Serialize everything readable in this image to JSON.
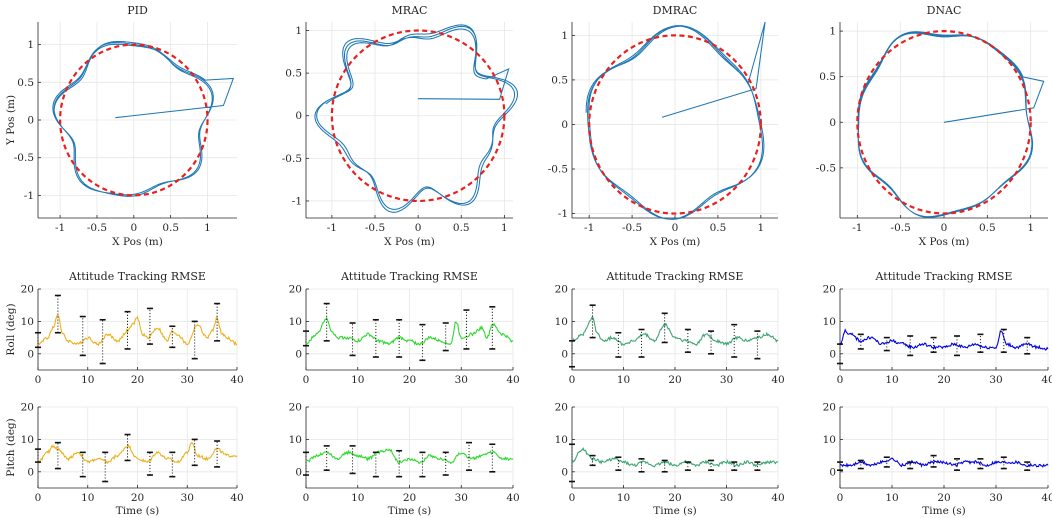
{
  "figure": {
    "trajectory_xlabel": "X Pos (m)",
    "trajectory_ylabel": "Y Pos (m)",
    "rmse_title": "Attitude Tracking RMSE",
    "roll_ylabel": "Roll (deg)",
    "pitch_ylabel": "Pitch (deg)",
    "time_xlabel": "Time (s)"
  },
  "chart_data": [
    {
      "type": "line",
      "controller": "PID",
      "title": "PID",
      "xlabel": "X Pos (m)",
      "ylabel": "Y Pos (m)",
      "xlim": [
        -1.3,
        1.4
      ],
      "ylim": [
        -1.3,
        1.3
      ],
      "xticks": [
        -1,
        -0.5,
        0,
        0.5,
        1
      ],
      "yticks": [
        -1,
        -0.5,
        0,
        0.5,
        1
      ],
      "reference": {
        "shape": "circle",
        "radius": 1,
        "style": "dashed",
        "color": "#e8201e"
      },
      "actual": {
        "color": "#1f77b4",
        "noise": 0.1,
        "harmonics": [
          5,
          7
        ],
        "start": [
          -0.25,
          0.03
        ],
        "spike": [
          1.35,
          0.55
        ]
      },
      "grid": true
    },
    {
      "type": "line",
      "controller": "MRAC",
      "title": "MRAC",
      "xlabel": "X Pos (m)",
      "ylabel": "",
      "xlim": [
        -1.3,
        1.1
      ],
      "ylim": [
        -1.2,
        1.1
      ],
      "xticks": [
        -1,
        -0.5,
        0,
        0.5,
        1
      ],
      "yticks": [
        -1,
        -0.5,
        0,
        0.5,
        1
      ],
      "reference": {
        "shape": "circle",
        "radius": 1,
        "style": "dashed",
        "color": "#e8201e"
      },
      "actual": {
        "color": "#1f77b4",
        "noise": 0.16,
        "harmonics": [
          6,
          9
        ],
        "start": [
          0.0,
          0.2
        ],
        "spike": [
          1.05,
          0.55
        ]
      },
      "grid": true
    },
    {
      "type": "line",
      "controller": "DMRAC",
      "title": "DMRAC",
      "xlabel": "X Pos (m)",
      "ylabel": "",
      "xlim": [
        -1.2,
        1.2
      ],
      "ylim": [
        -1.05,
        1.15
      ],
      "xticks": [
        -1,
        -0.5,
        0,
        0.5,
        1
      ],
      "yticks": [
        -1,
        -0.5,
        0,
        0.5,
        1
      ],
      "reference": {
        "shape": "circle",
        "radius": 1,
        "style": "dashed",
        "color": "#e8201e"
      },
      "actual": {
        "color": "#1f77b4",
        "noise": 0.08,
        "harmonics": [
          4,
          6
        ],
        "start": [
          -0.15,
          0.08
        ],
        "spike": [
          1.05,
          1.15
        ]
      },
      "grid": true
    },
    {
      "type": "line",
      "controller": "DNAC",
      "title": "DNAC",
      "xlabel": "X Pos (m)",
      "ylabel": "",
      "xlim": [
        -1.2,
        1.2
      ],
      "ylim": [
        -1.05,
        1.1
      ],
      "xticks": [
        -1,
        -0.5,
        0,
        0.5,
        1
      ],
      "yticks": [
        -0.5,
        0,
        0.5,
        1
      ],
      "reference": {
        "shape": "circle",
        "radius": 1,
        "style": "dashed",
        "color": "#e8201e"
      },
      "actual": {
        "color": "#1f77b4",
        "noise": 0.05,
        "harmonics": [
          5,
          8
        ],
        "start": [
          0.0,
          0.0
        ],
        "spike": [
          1.15,
          0.45
        ]
      },
      "grid": true
    },
    {
      "type": "line",
      "controller": "PID",
      "axis": "roll",
      "title": "Attitude Tracking RMSE",
      "xlabel": "",
      "ylabel": "Roll (deg)",
      "xlim": [
        0,
        40
      ],
      "ylim": [
        -5,
        20
      ],
      "xticks": [
        0,
        10,
        20,
        30,
        40
      ],
      "yticks": [
        0,
        10,
        20
      ],
      "line_color": "#edb120",
      "x": [
        0,
        2,
        3,
        4,
        5,
        6,
        8,
        10,
        12,
        14,
        16,
        18,
        19,
        20,
        21,
        22,
        24,
        26,
        27,
        28,
        30,
        32,
        34,
        35,
        36,
        37,
        38,
        40
      ],
      "y": [
        3,
        5,
        8,
        12,
        6,
        4,
        3,
        5,
        3,
        6,
        4,
        7,
        9,
        11,
        6,
        5,
        8,
        4,
        7,
        6,
        3,
        9,
        5,
        7,
        11,
        6,
        5,
        3
      ],
      "errorbars": [
        {
          "t": 0,
          "low": 2,
          "high": 6.5
        },
        {
          "t": 4,
          "low": 6.5,
          "high": 18
        },
        {
          "t": 9,
          "low": -0.5,
          "high": 11.5
        },
        {
          "t": 13,
          "low": -3,
          "high": 10.5
        },
        {
          "t": 18,
          "low": 1.5,
          "high": 13
        },
        {
          "t": 22.5,
          "low": 3,
          "high": 14
        },
        {
          "t": 27,
          "low": 2,
          "high": 8.5
        },
        {
          "t": 31.5,
          "low": -1.5,
          "high": 10
        },
        {
          "t": 36,
          "low": 4,
          "high": 15.5
        }
      ]
    },
    {
      "type": "line",
      "controller": "MRAC",
      "axis": "roll",
      "title": "Attitude Tracking RMSE",
      "xlabel": "",
      "ylabel": "",
      "xlim": [
        0,
        40
      ],
      "ylim": [
        -5,
        20
      ],
      "xticks": [
        0,
        10,
        20,
        30,
        40
      ],
      "yticks": [
        0,
        10,
        20
      ],
      "line_color": "#2fd82f",
      "x": [
        0,
        2,
        4,
        5,
        6,
        8,
        10,
        12,
        14,
        16,
        18,
        20,
        22,
        24,
        26,
        28,
        29,
        30,
        32,
        34,
        35,
        36,
        38,
        40
      ],
      "y": [
        3,
        6,
        11,
        7,
        5,
        5,
        4,
        6,
        4,
        3,
        5,
        4,
        3,
        5,
        4,
        3,
        10,
        5,
        6,
        8,
        5,
        9,
        6,
        4
      ],
      "errorbars": [
        {
          "t": 0,
          "low": 2.5,
          "high": 7
        },
        {
          "t": 4,
          "low": 4,
          "high": 15.5
        },
        {
          "t": 9,
          "low": -0.5,
          "high": 9.5
        },
        {
          "t": 13.5,
          "low": -1,
          "high": 10.5
        },
        {
          "t": 18,
          "low": -1,
          "high": 10.5
        },
        {
          "t": 22.5,
          "low": -2,
          "high": 9
        },
        {
          "t": 27,
          "low": 1,
          "high": 9.5
        },
        {
          "t": 31,
          "low": 1.5,
          "high": 13.5
        },
        {
          "t": 36,
          "low": 1.5,
          "high": 14.5
        }
      ]
    },
    {
      "type": "line",
      "controller": "DMRAC",
      "axis": "roll",
      "title": "Attitude Tracking RMSE",
      "xlabel": "",
      "ylabel": "",
      "xlim": [
        0,
        40
      ],
      "ylim": [
        -5,
        20
      ],
      "xticks": [
        0,
        10,
        20,
        30,
        40
      ],
      "yticks": [
        0,
        10,
        20
      ],
      "line_color": "#3ea572",
      "x": [
        0,
        2,
        4,
        5,
        6,
        8,
        10,
        12,
        14,
        16,
        18,
        20,
        22,
        24,
        26,
        28,
        30,
        32,
        34,
        36,
        38,
        40
      ],
      "y": [
        4,
        6,
        11,
        6,
        4,
        5,
        3,
        4,
        6,
        4,
        9,
        5,
        4,
        3,
        6,
        4,
        3,
        5,
        4,
        5,
        6,
        4
      ],
      "errorbars": [
        {
          "t": 0,
          "low": -4,
          "high": 4
        },
        {
          "t": 4,
          "low": 5,
          "high": 15
        },
        {
          "t": 9,
          "low": -1,
          "high": 6.5
        },
        {
          "t": 13.5,
          "low": -1,
          "high": 7.5
        },
        {
          "t": 18,
          "low": 3.5,
          "high": 12.5
        },
        {
          "t": 22.5,
          "low": 0.5,
          "high": 7.5
        },
        {
          "t": 27,
          "low": 0,
          "high": 7
        },
        {
          "t": 31.5,
          "low": -1,
          "high": 9
        },
        {
          "t": 36,
          "low": -1.5,
          "high": 7
        }
      ]
    },
    {
      "type": "line",
      "controller": "DNAC",
      "axis": "roll",
      "title": "Attitude Tracking RMSE",
      "xlabel": "",
      "ylabel": "",
      "xlim": [
        0,
        40
      ],
      "ylim": [
        -5,
        20
      ],
      "xticks": [
        0,
        10,
        20,
        30,
        40
      ],
      "yticks": [
        0,
        10,
        20
      ],
      "line_color": "#0000e0",
      "x": [
        0,
        1,
        2,
        4,
        6,
        8,
        10,
        12,
        14,
        16,
        18,
        20,
        22,
        24,
        26,
        28,
        30,
        31,
        32,
        34,
        36,
        38,
        40
      ],
      "y": [
        3,
        7,
        6,
        4,
        5,
        3,
        4,
        3,
        2,
        3,
        2,
        2,
        3,
        2,
        3,
        2,
        2,
        7,
        3,
        2,
        3,
        2,
        1.5
      ],
      "errorbars": [
        {
          "t": 0,
          "low": -3,
          "high": 3
        },
        {
          "t": 4,
          "low": 1.5,
          "high": 6
        },
        {
          "t": 9,
          "low": 1,
          "high": 5
        },
        {
          "t": 13.5,
          "low": -0.5,
          "high": 5.5
        },
        {
          "t": 18,
          "low": 0.5,
          "high": 5
        },
        {
          "t": 22.5,
          "low": -0.5,
          "high": 5.5
        },
        {
          "t": 27,
          "low": 0.5,
          "high": 6
        },
        {
          "t": 31.5,
          "low": 0.5,
          "high": 7.5
        },
        {
          "t": 36,
          "low": 0,
          "high": 5
        }
      ]
    },
    {
      "type": "line",
      "controller": "PID",
      "axis": "pitch",
      "title": "",
      "xlabel": "Time (s)",
      "ylabel": "Pitch (deg)",
      "xlim": [
        0,
        40
      ],
      "ylim": [
        -5,
        20
      ],
      "xticks": [
        0,
        10,
        20,
        30,
        40
      ],
      "yticks": [
        0,
        10,
        20
      ],
      "line_color": "#edb120",
      "x": [
        0,
        2,
        3,
        4,
        6,
        8,
        10,
        12,
        14,
        16,
        18,
        20,
        22,
        24,
        26,
        28,
        30,
        31,
        32,
        34,
        36,
        38,
        40
      ],
      "y": [
        3,
        6,
        8,
        7,
        4,
        6,
        3,
        4,
        3,
        5,
        8,
        4,
        3,
        6,
        4,
        3,
        6,
        9,
        5,
        4,
        7,
        5,
        5
      ],
      "errorbars": [
        {
          "t": 0,
          "low": 3,
          "high": 7
        },
        {
          "t": 4,
          "low": 1,
          "high": 9
        },
        {
          "t": 9,
          "low": -1.5,
          "high": 6
        },
        {
          "t": 13.5,
          "low": -3,
          "high": 6
        },
        {
          "t": 18,
          "low": 3.5,
          "high": 11.5
        },
        {
          "t": 22.5,
          "low": -1,
          "high": 6
        },
        {
          "t": 27,
          "low": -1.5,
          "high": 6
        },
        {
          "t": 31.5,
          "low": 2,
          "high": 10
        },
        {
          "t": 36,
          "low": 1.5,
          "high": 9.5
        }
      ]
    },
    {
      "type": "line",
      "controller": "MRAC",
      "axis": "pitch",
      "title": "",
      "xlabel": "Time (s)",
      "ylabel": "",
      "xlim": [
        0,
        40
      ],
      "ylim": [
        -5,
        20
      ],
      "xticks": [
        0,
        10,
        20,
        30,
        40
      ],
      "yticks": [
        0,
        10,
        20
      ],
      "line_color": "#2fd82f",
      "x": [
        0,
        2,
        4,
        6,
        8,
        10,
        12,
        14,
        16,
        18,
        20,
        22,
        24,
        26,
        28,
        30,
        32,
        34,
        36,
        38,
        40
      ],
      "y": [
        3,
        5,
        6,
        4,
        6,
        5,
        4,
        6,
        7,
        3,
        4,
        3,
        5,
        4,
        3,
        6,
        4,
        5,
        6,
        4,
        4
      ],
      "errorbars": [
        {
          "t": 0,
          "low": -1,
          "high": 6
        },
        {
          "t": 4,
          "low": 0.5,
          "high": 8
        },
        {
          "t": 9,
          "low": -0.5,
          "high": 8
        },
        {
          "t": 13.5,
          "low": -1.5,
          "high": 6
        },
        {
          "t": 18,
          "low": -1.5,
          "high": 6.5
        },
        {
          "t": 22.5,
          "low": -1.5,
          "high": 6
        },
        {
          "t": 27,
          "low": -1,
          "high": 6
        },
        {
          "t": 31.5,
          "low": 0.5,
          "high": 9
        },
        {
          "t": 36,
          "low": 0,
          "high": 8.5
        }
      ]
    },
    {
      "type": "line",
      "controller": "DMRAC",
      "axis": "pitch",
      "title": "",
      "xlabel": "Time (s)",
      "ylabel": "",
      "xlim": [
        0,
        40
      ],
      "ylim": [
        -5,
        20
      ],
      "xticks": [
        0,
        10,
        20,
        30,
        40
      ],
      "yticks": [
        0,
        10,
        20
      ],
      "line_color": "#3ea572",
      "x": [
        0,
        2,
        4,
        6,
        8,
        10,
        12,
        14,
        16,
        18,
        20,
        22,
        24,
        26,
        28,
        30,
        32,
        34,
        36,
        38,
        40
      ],
      "y": [
        3,
        7,
        4,
        3,
        4,
        3,
        2,
        3,
        2,
        3,
        2,
        3,
        2,
        3,
        2,
        3,
        2,
        3,
        2,
        3,
        3
      ],
      "errorbars": [
        {
          "t": 0,
          "low": -3,
          "high": 8.5
        },
        {
          "t": 4,
          "low": 2,
          "high": 5
        },
        {
          "t": 9,
          "low": 0.5,
          "high": 4.5
        },
        {
          "t": 13.5,
          "low": 0,
          "high": 4
        },
        {
          "t": 18,
          "low": 0,
          "high": 3.5
        },
        {
          "t": 22.5,
          "low": 0.5,
          "high": 3
        },
        {
          "t": 27,
          "low": 0.5,
          "high": 3.5
        },
        {
          "t": 31.5,
          "low": 0.5,
          "high": 3
        },
        {
          "t": 36,
          "low": 0.5,
          "high": 3
        }
      ]
    },
    {
      "type": "line",
      "controller": "DNAC",
      "axis": "pitch",
      "title": "",
      "xlabel": "Time (s)",
      "ylabel": "",
      "xlim": [
        0,
        40
      ],
      "ylim": [
        -5,
        20
      ],
      "xticks": [
        0,
        10,
        20,
        30,
        40
      ],
      "yticks": [
        0,
        10,
        20
      ],
      "line_color": "#0000e0",
      "x": [
        0,
        2,
        4,
        6,
        8,
        10,
        12,
        14,
        16,
        18,
        20,
        22,
        24,
        26,
        28,
        30,
        32,
        34,
        36,
        38,
        40
      ],
      "y": [
        2,
        2,
        3,
        2,
        3,
        4,
        2,
        3,
        2,
        3,
        3,
        2,
        3,
        3,
        2,
        3,
        3,
        3,
        2,
        2,
        2
      ],
      "errorbars": [
        {
          "t": 0,
          "low": 0.5,
          "high": 3
        },
        {
          "t": 4,
          "low": 1,
          "high": 3.5
        },
        {
          "t": 9,
          "low": 1.5,
          "high": 4.5
        },
        {
          "t": 13.5,
          "low": 1,
          "high": 3
        },
        {
          "t": 18,
          "low": 1.5,
          "high": 5
        },
        {
          "t": 22.5,
          "low": 0.5,
          "high": 4
        },
        {
          "t": 27,
          "low": 1,
          "high": 4
        },
        {
          "t": 31.5,
          "low": 1,
          "high": 4.5
        },
        {
          "t": 36,
          "low": 0.5,
          "high": 3
        }
      ]
    }
  ]
}
